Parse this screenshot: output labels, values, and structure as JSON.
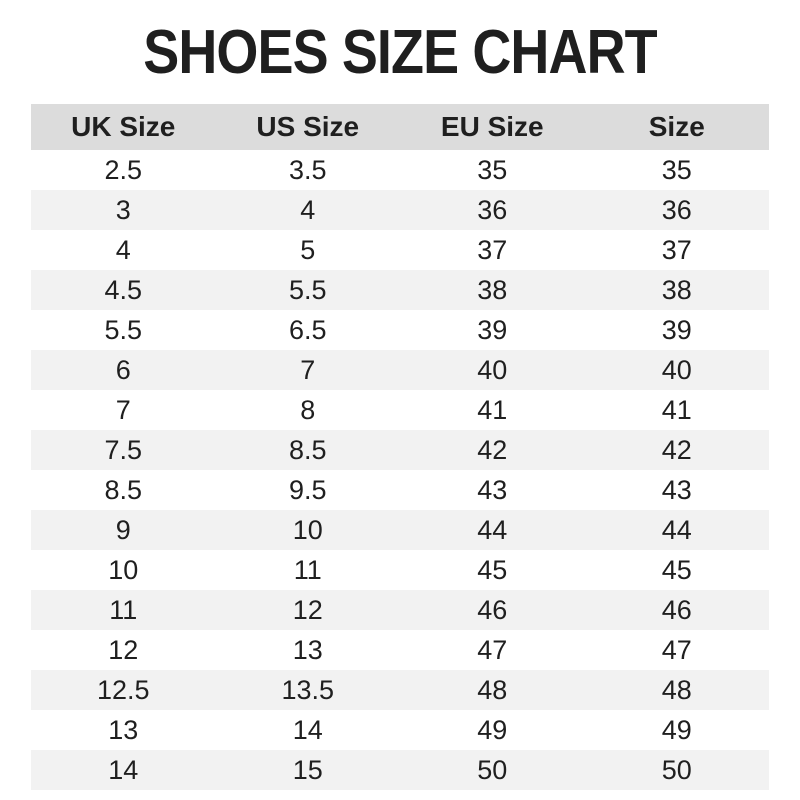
{
  "title": "SHOES SIZE CHART",
  "colors": {
    "header_bg": "#dcdcdc",
    "stripe_bg": "#f2f2f2",
    "text": "#1f1f1f",
    "page_bg": "#ffffff"
  },
  "chart_data": {
    "type": "table",
    "title": "SHOES SIZE CHART",
    "columns": [
      "UK Size",
      "US Size",
      "EU Size",
      "Size"
    ],
    "rows": [
      [
        "2.5",
        "3.5",
        "35",
        "35"
      ],
      [
        "3",
        "4",
        "36",
        "36"
      ],
      [
        "4",
        "5",
        "37",
        "37"
      ],
      [
        "4.5",
        "5.5",
        "38",
        "38"
      ],
      [
        "5.5",
        "6.5",
        "39",
        "39"
      ],
      [
        "6",
        "7",
        "40",
        "40"
      ],
      [
        "7",
        "8",
        "41",
        "41"
      ],
      [
        "7.5",
        "8.5",
        "42",
        "42"
      ],
      [
        "8.5",
        "9.5",
        "43",
        "43"
      ],
      [
        "9",
        "10",
        "44",
        "44"
      ],
      [
        "10",
        "11",
        "45",
        "45"
      ],
      [
        "11",
        "12",
        "46",
        "46"
      ],
      [
        "12",
        "13",
        "47",
        "47"
      ],
      [
        "12.5",
        "13.5",
        "48",
        "48"
      ],
      [
        "13",
        "14",
        "49",
        "49"
      ],
      [
        "14",
        "15",
        "50",
        "50"
      ]
    ],
    "layout": {
      "grid": false,
      "striped_rows": true,
      "first_stripe": "white"
    }
  }
}
